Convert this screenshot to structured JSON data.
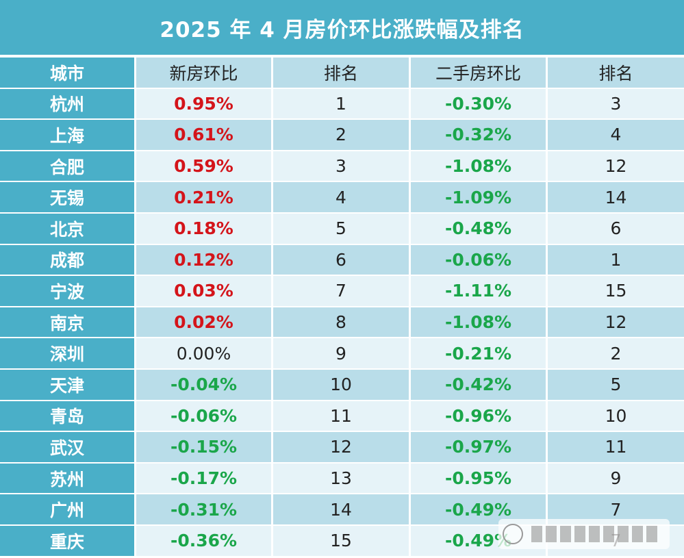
{
  "title": "2025 年 4 月房价环比涨跌幅及排名",
  "headers": [
    "城市",
    "新房环比",
    "排名",
    "二手房环比",
    "排名"
  ],
  "rows": [
    {
      "city": "杭州",
      "new": "0.95%",
      "new_dir": "up",
      "new_rank": "1",
      "used": "-0.30%",
      "used_rank": "3"
    },
    {
      "city": "上海",
      "new": "0.61%",
      "new_dir": "up",
      "new_rank": "2",
      "used": "-0.32%",
      "used_rank": "4"
    },
    {
      "city": "合肥",
      "new": "0.59%",
      "new_dir": "up",
      "new_rank": "3",
      "used": "-1.08%",
      "used_rank": "12"
    },
    {
      "city": "无锡",
      "new": "0.21%",
      "new_dir": "up",
      "new_rank": "4",
      "used": "-1.09%",
      "used_rank": "14"
    },
    {
      "city": "北京",
      "new": "0.18%",
      "new_dir": "up",
      "new_rank": "5",
      "used": "-0.48%",
      "used_rank": "6"
    },
    {
      "city": "成都",
      "new": "0.12%",
      "new_dir": "up",
      "new_rank": "6",
      "used": "-0.06%",
      "used_rank": "1"
    },
    {
      "city": "宁波",
      "new": "0.03%",
      "new_dir": "up",
      "new_rank": "7",
      "used": "-1.11%",
      "used_rank": "15"
    },
    {
      "city": "南京",
      "new": "0.02%",
      "new_dir": "up",
      "new_rank": "8",
      "used": "-1.08%",
      "used_rank": "12"
    },
    {
      "city": "深圳",
      "new": "0.00%",
      "new_dir": "flat",
      "new_rank": "9",
      "used": "-0.21%",
      "used_rank": "2"
    },
    {
      "city": "天津",
      "new": "-0.04%",
      "new_dir": "down",
      "new_rank": "10",
      "used": "-0.42%",
      "used_rank": "5"
    },
    {
      "city": "青岛",
      "new": "-0.06%",
      "new_dir": "down",
      "new_rank": "11",
      "used": "-0.96%",
      "used_rank": "10"
    },
    {
      "city": "武汉",
      "new": "-0.15%",
      "new_dir": "down",
      "new_rank": "12",
      "used": "-0.97%",
      "used_rank": "11"
    },
    {
      "city": "苏州",
      "new": "-0.17%",
      "new_dir": "down",
      "new_rank": "13",
      "used": "-0.95%",
      "used_rank": "9"
    },
    {
      "city": "广州",
      "new": "-0.31%",
      "new_dir": "down",
      "new_rank": "14",
      "used": "-0.49%",
      "used_rank": "7"
    },
    {
      "city": "重庆",
      "new": "-0.36%",
      "new_dir": "down",
      "new_rank": "15",
      "used": "-0.49%",
      "used_rank": "7"
    }
  ],
  "colors": {
    "header_bg": "#4aafc8",
    "row_light": "#e6f3f8",
    "row_dark": "#b9dde9",
    "rise": "#d4141a",
    "fall": "#1aa64a"
  }
}
